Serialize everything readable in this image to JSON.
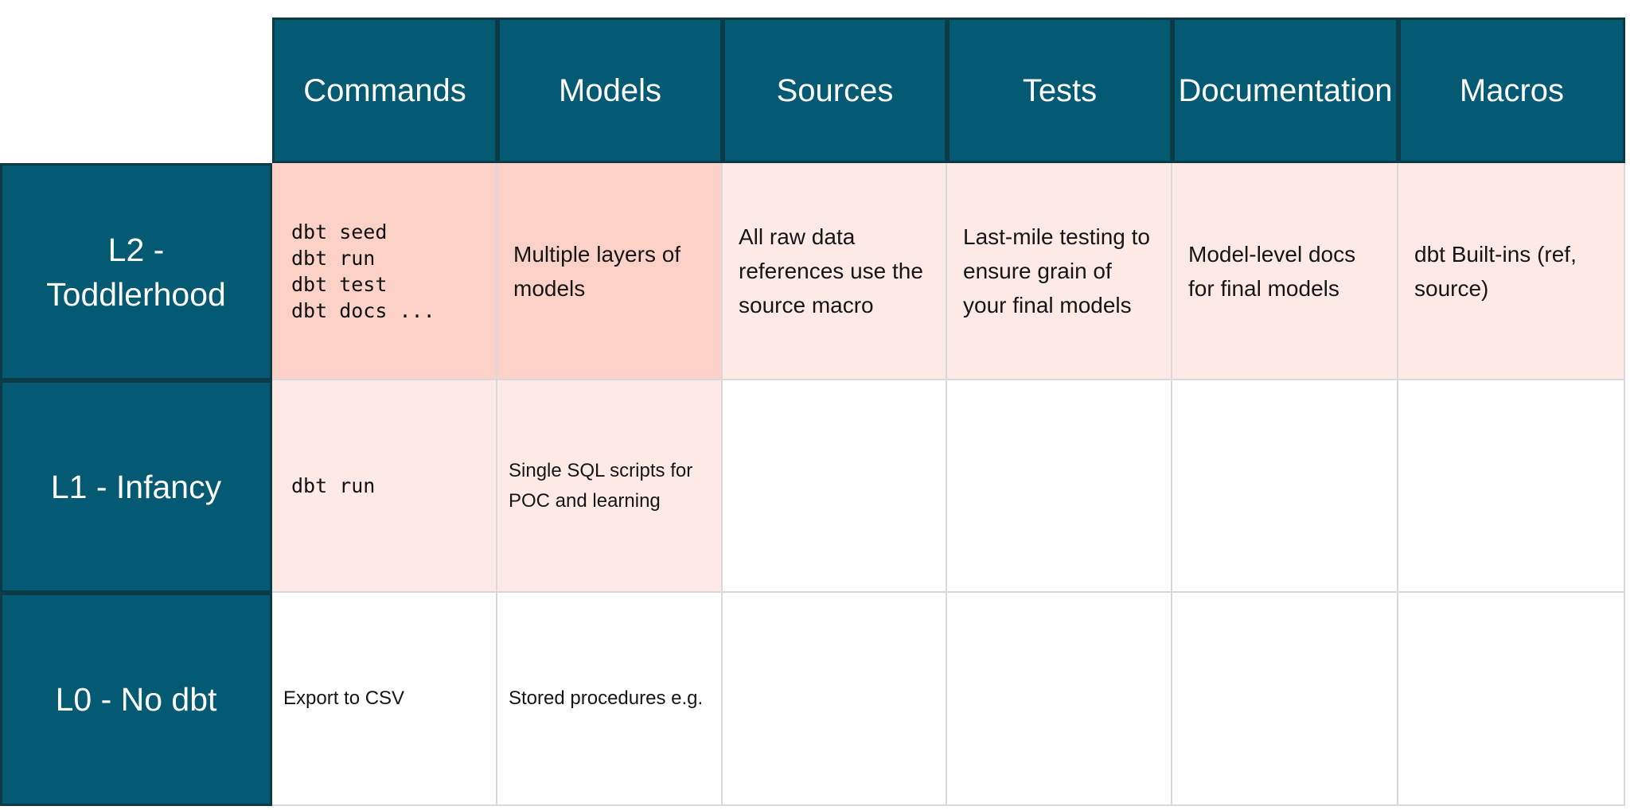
{
  "palette": {
    "header_teal": "#045a73",
    "header_stroke": "#0d3a47",
    "cell_salmon": "#fcd2c8",
    "cell_pink": "#fdeae6",
    "cell_border_gray": "#d9d9d9",
    "text_dark": "#161616",
    "text_white": "#ffffff"
  },
  "table": {
    "columns": [
      "Commands",
      "Models",
      "Sources",
      "Tests",
      "Documentation",
      "Macros"
    ],
    "rows": [
      {
        "label": "L2 -\nToddlerhood",
        "cells": {
          "commands": "dbt seed\ndbt run\ndbt test\ndbt docs ...",
          "models": "Multiple layers of models",
          "sources": "All raw data references use the source macro",
          "tests": "Last-mile testing to ensure grain of your final models",
          "documentation": "Model-level docs for final models",
          "macros": "dbt Built-ins (ref, source)"
        }
      },
      {
        "label": "L1 - Infancy",
        "cells": {
          "commands": "dbt run",
          "models": "Single SQL scripts for POC and learning",
          "sources": "",
          "tests": "",
          "documentation": "",
          "macros": ""
        }
      },
      {
        "label": "L0 - No dbt",
        "cells": {
          "commands": "Export to CSV",
          "models": "Stored procedures e.g.",
          "sources": "",
          "tests": "",
          "documentation": "",
          "macros": ""
        }
      }
    ]
  }
}
